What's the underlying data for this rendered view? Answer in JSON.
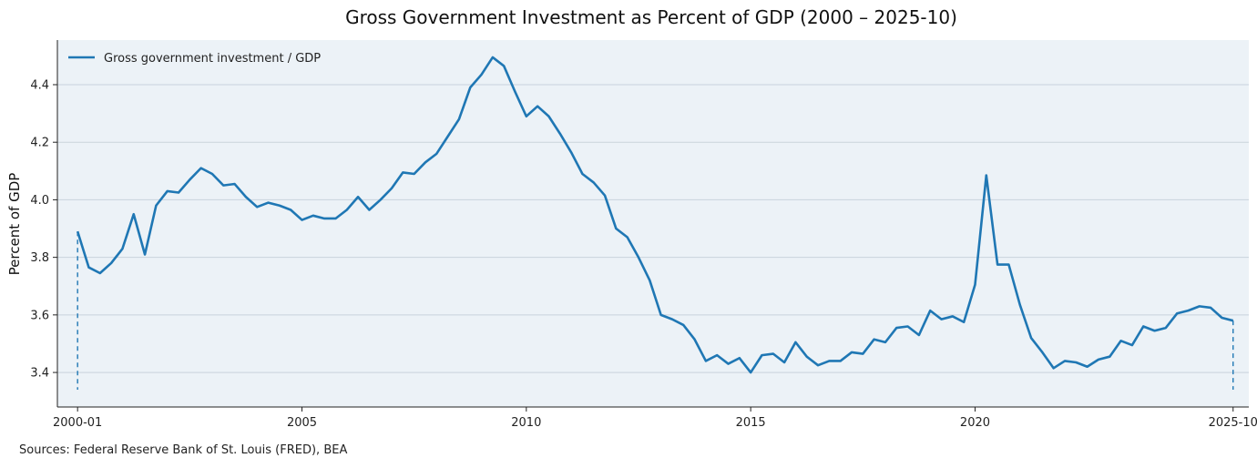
{
  "chart_data": {
    "type": "line",
    "title": "Gross Government Investment as Percent of GDP (2000 – 2025-10)",
    "xlabel": "",
    "ylabel": "Percent of GDP",
    "ylim": [
      3.28,
      4.555
    ],
    "xlim": [
      1999.55,
      2026.1
    ],
    "yticks": [
      3.4,
      3.6,
      3.8,
      4.0,
      4.2,
      4.4
    ],
    "ytick_labels": [
      "3.4",
      "3.6",
      "3.8",
      "4.0",
      "4.2",
      "4.4"
    ],
    "xticks": [
      2000.0,
      2005.0,
      2010.0,
      2015.0,
      2020.0,
      2025.75
    ],
    "xtick_labels": [
      "2000-01",
      "2005",
      "2010",
      "2015",
      "2020",
      "2025-10"
    ],
    "grid": "horizontal",
    "legend_position": "top-left",
    "color": "#1f77b4",
    "background": "#ecf2f7",
    "series": [
      {
        "name": "Gross government investment / GDP",
        "x": [
          2000.0,
          2000.25,
          2000.5,
          2000.75,
          2001.0,
          2001.25,
          2001.5,
          2001.75,
          2002.0,
          2002.25,
          2002.5,
          2002.75,
          2003.0,
          2003.25,
          2003.5,
          2003.75,
          2004.0,
          2004.25,
          2004.5,
          2004.75,
          2005.0,
          2005.25,
          2005.5,
          2005.75,
          2006.0,
          2006.25,
          2006.5,
          2006.75,
          2007.0,
          2007.25,
          2007.5,
          2007.75,
          2008.0,
          2008.25,
          2008.5,
          2008.75,
          2009.0,
          2009.25,
          2009.5,
          2009.75,
          2010.0,
          2010.25,
          2010.5,
          2010.75,
          2011.0,
          2011.25,
          2011.5,
          2011.75,
          2012.0,
          2012.25,
          2012.5,
          2012.75,
          2013.0,
          2013.25,
          2013.5,
          2013.75,
          2014.0,
          2014.25,
          2014.5,
          2014.75,
          2015.0,
          2015.25,
          2015.5,
          2015.75,
          2016.0,
          2016.25,
          2016.5,
          2016.75,
          2017.0,
          2017.25,
          2017.5,
          2017.75,
          2018.0,
          2018.25,
          2018.5,
          2018.75,
          2019.0,
          2019.25,
          2019.5,
          2019.75,
          2020.0,
          2020.25,
          2020.5,
          2020.75,
          2021.0,
          2021.25,
          2021.5,
          2021.75,
          2022.0,
          2022.25,
          2022.5,
          2022.75,
          2023.0,
          2023.25,
          2023.5,
          2023.75,
          2024.0,
          2024.25,
          2024.5,
          2024.75,
          2025.0,
          2025.25,
          2025.5,
          2025.75
        ],
        "values": [
          3.89,
          3.765,
          3.745,
          3.78,
          3.83,
          3.95,
          3.81,
          3.98,
          4.03,
          4.025,
          4.07,
          4.11,
          4.09,
          4.05,
          4.055,
          4.01,
          3.975,
          3.99,
          3.98,
          3.965,
          3.93,
          3.945,
          3.935,
          3.935,
          3.965,
          4.01,
          3.965,
          4.0,
          4.04,
          4.095,
          4.09,
          4.13,
          4.16,
          4.22,
          4.28,
          4.39,
          4.435,
          4.495,
          4.465,
          4.375,
          4.29,
          4.325,
          4.29,
          4.23,
          4.165,
          4.09,
          4.06,
          4.015,
          3.9,
          3.87,
          3.8,
          3.72,
          3.6,
          3.585,
          3.565,
          3.515,
          3.44,
          3.46,
          3.43,
          3.45,
          3.4,
          3.46,
          3.465,
          3.435,
          3.505,
          3.455,
          3.425,
          3.44,
          3.44,
          3.47,
          3.465,
          3.515,
          3.505,
          3.555,
          3.56,
          3.53,
          3.615,
          3.585,
          3.595,
          3.575,
          3.705,
          4.085,
          3.775,
          3.775,
          3.635,
          3.52,
          3.47,
          3.415,
          3.44,
          3.435,
          3.42,
          3.445,
          3.455,
          3.51,
          3.495,
          3.56,
          3.545,
          3.555,
          3.605,
          3.615,
          3.63,
          3.625,
          3.59,
          3.58
        ]
      }
    ],
    "markers": [
      {
        "x": 2000.0,
        "label": "2000-01"
      },
      {
        "x": 2025.75,
        "label": "2025-10"
      }
    ]
  },
  "footer": {
    "source": "Sources: Federal Reserve Bank of St. Louis (FRED), BEA"
  }
}
